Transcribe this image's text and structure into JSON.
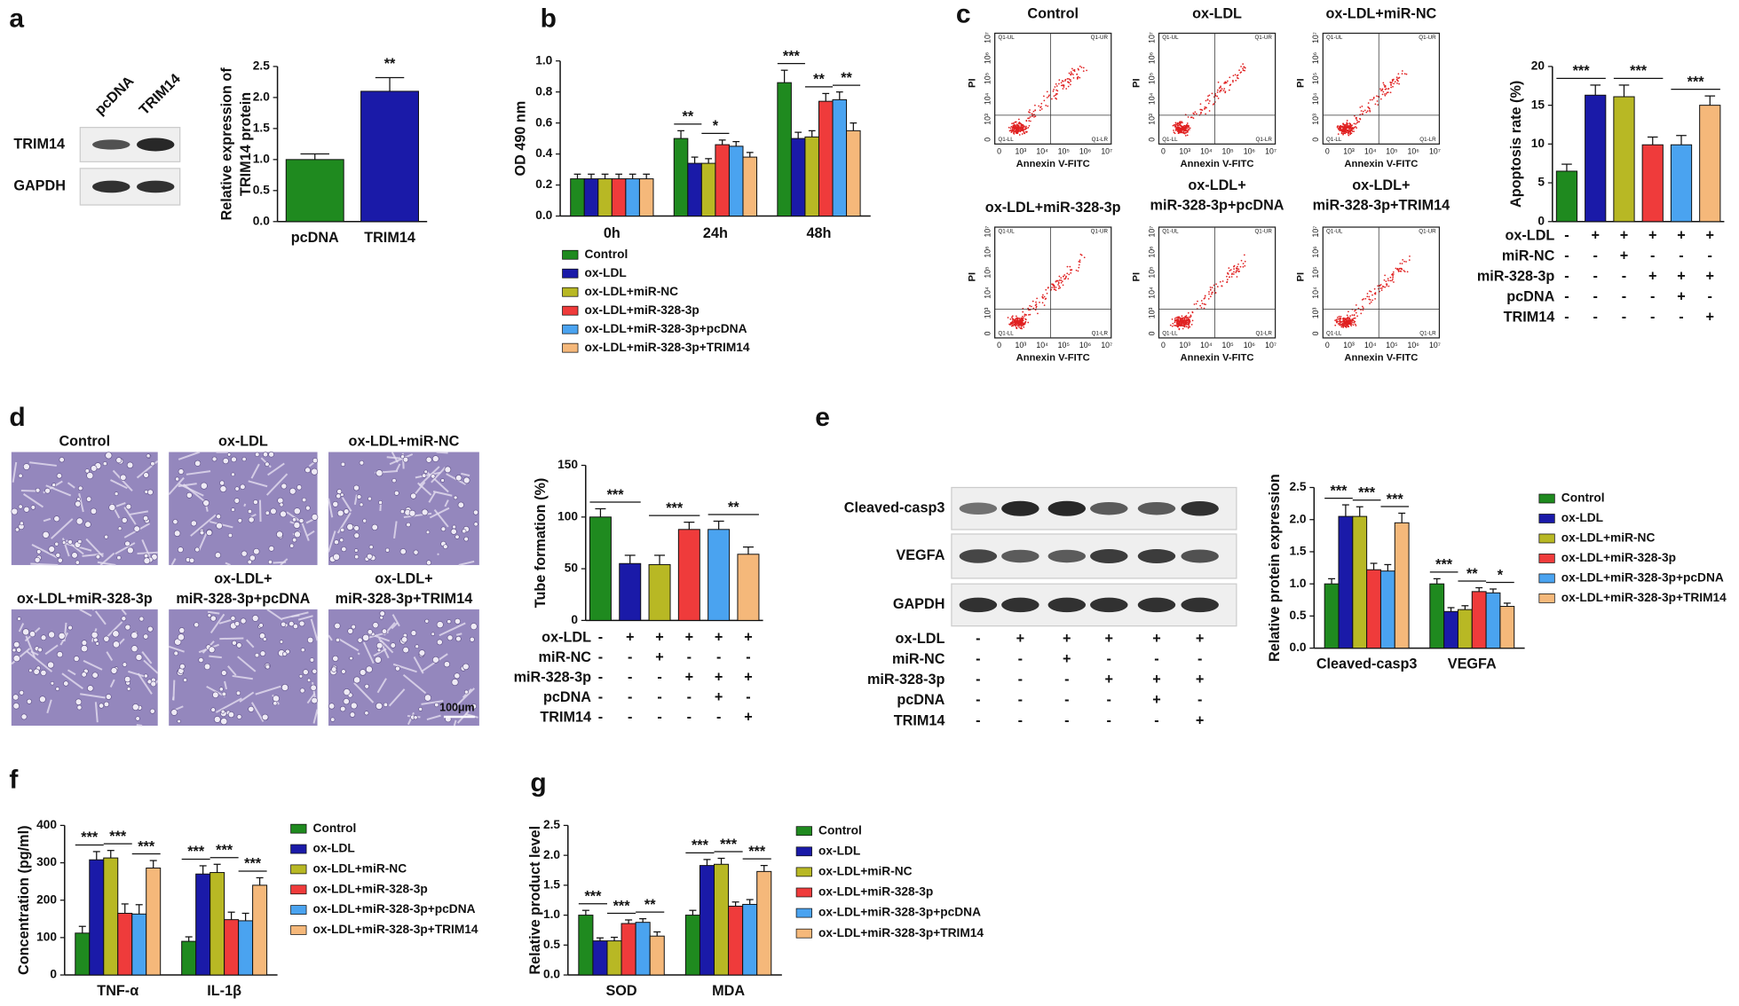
{
  "panels": [
    "a",
    "b",
    "c",
    "d",
    "e",
    "f",
    "g"
  ],
  "blots": {
    "a": {
      "lanes": [
        "pcDNA",
        "TRIM14"
      ],
      "rows": [
        "TRIM14",
        "GAPDH"
      ]
    },
    "e": {
      "rows": [
        "Cleaved-casp3",
        "VEGFA",
        "GAPDH"
      ],
      "treatments": [
        {
          "name": "ox-LDL",
          "marks": [
            "-",
            "+",
            "+",
            "+",
            "+",
            "+"
          ]
        },
        {
          "name": "miR-NC",
          "marks": [
            "-",
            "-",
            "+",
            "-",
            "-",
            "-"
          ]
        },
        {
          "name": "miR-328-3p",
          "marks": [
            "-",
            "-",
            "-",
            "+",
            "+",
            "+"
          ]
        },
        {
          "name": "pcDNA",
          "marks": [
            "-",
            "-",
            "-",
            "-",
            "+",
            "-"
          ]
        },
        {
          "name": "TRIM14",
          "marks": [
            "-",
            "-",
            "-",
            "-",
            "-",
            "+"
          ]
        }
      ]
    }
  },
  "flow": {
    "titles": [
      [
        "Control"
      ],
      [
        "ox-LDL"
      ],
      [
        "ox-LDL+miR-NC"
      ],
      [
        "ox-LDL+miR-328-3p"
      ],
      [
        "ox-LDL+",
        "miR-328-3p+pcDNA"
      ],
      [
        "ox-LDL+",
        "miR-328-3p+TRIM14"
      ]
    ],
    "xlabel": "Annexin V-FITC",
    "ylabel": "PI",
    "ticks": [
      "0",
      "10³",
      "10⁴",
      "10⁵",
      "10⁶",
      "10⁷"
    ],
    "quadrants": [
      "Q1-UL",
      "Q1-UR",
      "Q1-LL",
      "Q1-LR"
    ]
  },
  "micro": {
    "titles": [
      [
        "Control"
      ],
      [
        "ox-LDL"
      ],
      [
        "ox-LDL+miR-NC"
      ],
      [
        "ox-LDL+miR-328-3p"
      ],
      [
        "ox-LDL+",
        "miR-328-3p+pcDNA"
      ],
      [
        "ox-LDL+",
        "miR-328-3p+TRIM14"
      ]
    ],
    "scale_bar": "100μm"
  },
  "chart_data": [
    {
      "type": "bar",
      "ylabel": [
        "Relative expression of",
        "TRIM14 protein"
      ],
      "categories": [
        "pcDNA",
        "TRIM14"
      ],
      "values": [
        1.0,
        2.1
      ],
      "errors": [
        0.09,
        0.22
      ],
      "colors": [
        "#1f8a1f",
        "#1a1aa8"
      ],
      "annotations": [
        null,
        "**"
      ],
      "ylim": [
        0,
        2.5
      ],
      "yticks": [
        {
          "value": 0,
          "label": "0.0"
        },
        0.5,
        {
          "value": 1,
          "label": "1.0"
        },
        1.5,
        {
          "value": 2,
          "label": "2.0"
        },
        2.5
      ]
    },
    {
      "type": "bar",
      "ylabel": "OD 490 nm",
      "categories": [
        "0h",
        "24h",
        "48h"
      ],
      "series": [
        {
          "name": "Control",
          "color": "#1f8a1f",
          "values": [
            0.24,
            0.5,
            0.86
          ],
          "errors": [
            0.03,
            0.05,
            0.08
          ]
        },
        {
          "name": "ox-LDL",
          "color": "#1a1aa8",
          "values": [
            0.24,
            0.34,
            0.5
          ],
          "errors": [
            0.03,
            0.04,
            0.04
          ]
        },
        {
          "name": "ox-LDL+miR-NC",
          "color": "#b8b824",
          "values": [
            0.24,
            0.34,
            0.51
          ],
          "errors": [
            0.03,
            0.03,
            0.04
          ]
        },
        {
          "name": "ox-LDL+miR-328-3p",
          "color": "#ef3b3b",
          "values": [
            0.24,
            0.46,
            0.74
          ],
          "errors": [
            0.03,
            0.03,
            0.05
          ]
        },
        {
          "name": "ox-LDL+miR-328-3p+pcDNA",
          "color": "#4aa3f0",
          "values": [
            0.24,
            0.45,
            0.75
          ],
          "errors": [
            0.03,
            0.03,
            0.05
          ]
        },
        {
          "name": "ox-LDL+miR-328-3p+TRIM14",
          "color": "#f5b87a",
          "values": [
            0.24,
            0.38,
            0.55
          ],
          "errors": [
            0.03,
            0.03,
            0.05
          ]
        }
      ],
      "annotations": [
        [
          null,
          null,
          null
        ],
        [
          "**",
          "*",
          null
        ],
        [
          "***",
          "**",
          "**"
        ]
      ],
      "ylim": [
        0,
        1.0
      ],
      "yticks": [
        {
          "value": 0,
          "label": "0.0"
        },
        0.2,
        0.4,
        0.6,
        0.8,
        {
          "value": 1,
          "label": "1.0"
        }
      ]
    },
    {
      "type": "bar",
      "ylabel": "Apoptosis rate (%)",
      "values": [
        6.5,
        16.3,
        16.1,
        9.9,
        9.9,
        15.0
      ],
      "errors": [
        0.9,
        1.3,
        1.5,
        1.0,
        1.2,
        1.2
      ],
      "colors": [
        "#1f8a1f",
        "#1a1aa8",
        "#b8b824",
        "#ef3b3b",
        "#4aa3f0",
        "#f5b87a"
      ],
      "annotations": [
        "***",
        "***",
        "***"
      ],
      "ylim": [
        0,
        20
      ],
      "yticks": [
        0,
        5,
        10,
        15,
        20
      ],
      "treatments": [
        {
          "name": "ox-LDL",
          "marks": [
            "-",
            "+",
            "+",
            "+",
            "+",
            "+"
          ]
        },
        {
          "name": "miR-NC",
          "marks": [
            "-",
            "-",
            "+",
            "-",
            "-",
            "-"
          ]
        },
        {
          "name": "miR-328-3p",
          "marks": [
            "-",
            "-",
            "-",
            "+",
            "+",
            "+"
          ]
        },
        {
          "name": "pcDNA",
          "marks": [
            "-",
            "-",
            "-",
            "-",
            "+",
            "-"
          ]
        },
        {
          "name": "TRIM14",
          "marks": [
            "-",
            "-",
            "-",
            "-",
            "-",
            "+"
          ]
        }
      ]
    },
    {
      "type": "bar",
      "ylabel": "Tube formation (%)",
      "values": [
        100,
        55,
        54,
        88,
        88,
        64
      ],
      "errors": [
        8,
        8,
        9,
        7,
        8,
        7
      ],
      "colors": [
        "#1f8a1f",
        "#1a1aa8",
        "#b8b824",
        "#ef3b3b",
        "#4aa3f0",
        "#f5b87a"
      ],
      "annotations": [
        "***",
        "***",
        "**"
      ],
      "ylim": [
        0,
        150
      ],
      "yticks": [
        0,
        50,
        100,
        150
      ],
      "treatments": [
        {
          "name": "ox-LDL",
          "marks": [
            "-",
            "+",
            "+",
            "+",
            "+",
            "+"
          ]
        },
        {
          "name": "miR-NC",
          "marks": [
            "-",
            "-",
            "+",
            "-",
            "-",
            "-"
          ]
        },
        {
          "name": "miR-328-3p",
          "marks": [
            "-",
            "-",
            "-",
            "+",
            "+",
            "+"
          ]
        },
        {
          "name": "pcDNA",
          "marks": [
            "-",
            "-",
            "-",
            "-",
            "+",
            "-"
          ]
        },
        {
          "name": "TRIM14",
          "marks": [
            "-",
            "-",
            "-",
            "-",
            "-",
            "+"
          ]
        }
      ]
    },
    {
      "type": "bar",
      "ylabel": "Relative protein expression",
      "categories": [
        "Cleaved-casp3",
        "VEGFA"
      ],
      "series": [
        {
          "name": "Control",
          "color": "#1f8a1f",
          "values": [
            1.0,
            1.0
          ],
          "errors": [
            0.08,
            0.08
          ]
        },
        {
          "name": "ox-LDL",
          "color": "#1a1aa8",
          "values": [
            2.05,
            0.57
          ],
          "errors": [
            0.18,
            0.06
          ]
        },
        {
          "name": "ox-LDL+miR-NC",
          "color": "#b8b824",
          "values": [
            2.05,
            0.6
          ],
          "errors": [
            0.15,
            0.06
          ]
        },
        {
          "name": "ox-LDL+miR-328-3p",
          "color": "#ef3b3b",
          "values": [
            1.22,
            0.88
          ],
          "errors": [
            0.1,
            0.06
          ]
        },
        {
          "name": "ox-LDL+miR-328-3p+pcDNA",
          "color": "#4aa3f0",
          "values": [
            1.2,
            0.86
          ],
          "errors": [
            0.1,
            0.06
          ]
        },
        {
          "name": "ox-LDL+miR-328-3p+TRIM14",
          "color": "#f5b87a",
          "values": [
            1.95,
            0.65
          ],
          "errors": [
            0.15,
            0.05
          ]
        }
      ],
      "annotations": [
        [
          "***",
          "***",
          "***"
        ],
        [
          "***",
          "**",
          "*"
        ]
      ],
      "ylim": [
        0,
        2.5
      ],
      "yticks": [
        {
          "value": 0,
          "label": "0.0"
        },
        0.5,
        {
          "value": 1,
          "label": "1.0"
        },
        1.5,
        {
          "value": 2,
          "label": "2.0"
        },
        2.5
      ]
    },
    {
      "type": "bar",
      "ylabel": "Concentration (pg/ml)",
      "categories": [
        "TNF-α",
        "IL-1β"
      ],
      "series": [
        {
          "name": "Control",
          "color": "#1f8a1f",
          "values": [
            112,
            90
          ],
          "errors": [
            18,
            12
          ]
        },
        {
          "name": "ox-LDL",
          "color": "#1a1aa8",
          "values": [
            308,
            270
          ],
          "errors": [
            22,
            22
          ]
        },
        {
          "name": "ox-LDL+miR-NC",
          "color": "#b8b824",
          "values": [
            313,
            274
          ],
          "errors": [
            20,
            22
          ]
        },
        {
          "name": "ox-LDL+miR-328-3p",
          "color": "#ef3b3b",
          "values": [
            165,
            148
          ],
          "errors": [
            25,
            20
          ]
        },
        {
          "name": "ox-LDL+miR-328-3p+pcDNA",
          "color": "#4aa3f0",
          "values": [
            163,
            145
          ],
          "errors": [
            25,
            20
          ]
        },
        {
          "name": "ox-LDL+miR-328-3p+TRIM14",
          "color": "#f5b87a",
          "values": [
            286,
            240
          ],
          "errors": [
            20,
            20
          ]
        }
      ],
      "annotations": [
        [
          "***",
          "***",
          "***"
        ],
        [
          "***",
          "***",
          "***"
        ]
      ],
      "ylim": [
        0,
        400
      ],
      "yticks": [
        0,
        100,
        200,
        300,
        400
      ]
    },
    {
      "type": "bar",
      "ylabel": "Relative product level",
      "categories": [
        "SOD",
        "MDA"
      ],
      "series": [
        {
          "name": "Control",
          "color": "#1f8a1f",
          "values": [
            1.0,
            1.0
          ],
          "errors": [
            0.08,
            0.08
          ]
        },
        {
          "name": "ox-LDL",
          "color": "#1a1aa8",
          "values": [
            0.57,
            1.83
          ],
          "errors": [
            0.05,
            0.1
          ]
        },
        {
          "name": "ox-LDL+miR-NC",
          "color": "#b8b824",
          "values": [
            0.57,
            1.85
          ],
          "errors": [
            0.06,
            0.1
          ]
        },
        {
          "name": "ox-LDL+miR-328-3p",
          "color": "#ef3b3b",
          "values": [
            0.86,
            1.15
          ],
          "errors": [
            0.06,
            0.07
          ]
        },
        {
          "name": "ox-LDL+miR-328-3p+pcDNA",
          "color": "#4aa3f0",
          "values": [
            0.88,
            1.18
          ],
          "errors": [
            0.06,
            0.08
          ]
        },
        {
          "name": "ox-LDL+miR-328-3p+TRIM14",
          "color": "#f5b87a",
          "values": [
            0.65,
            1.73
          ],
          "errors": [
            0.07,
            0.1
          ]
        }
      ],
      "annotations": [
        [
          "***",
          "***",
          "**"
        ],
        [
          "***",
          "***",
          "***"
        ]
      ],
      "ylim": [
        0,
        2.5
      ],
      "yticks": [
        {
          "value": 0,
          "label": "0.0"
        },
        0.5,
        {
          "value": 1,
          "label": "1.0"
        },
        1.5,
        {
          "value": 2,
          "label": "2.0"
        },
        2.5
      ]
    }
  ]
}
